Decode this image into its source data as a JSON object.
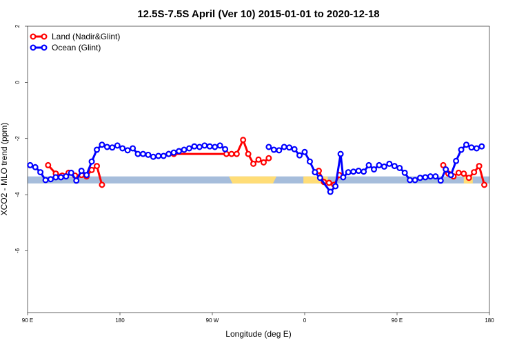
{
  "chart_data": {
    "type": "line",
    "title": "12.5S-7.5S April (Ver 10)   2015-01-01 to 2020-12-18",
    "xlabel": "Longitude (deg E)",
    "ylabel": "XCO2 - MLO trend (ppm)",
    "xlim": [
      90,
      450
    ],
    "ylim": [
      -8.2,
      2
    ],
    "grid": false,
    "legend_position": "top-left",
    "x_ticks": [
      {
        "value": 90,
        "label": "90 E"
      },
      {
        "value": 162,
        "label": "180"
      },
      {
        "value": 234,
        "label": "90 W"
      },
      {
        "value": 306,
        "label": "0"
      },
      {
        "value": 378,
        "label": "90 E"
      },
      {
        "value": 450,
        "label": "180"
      }
    ],
    "y_ticks": [
      {
        "value": 2,
        "label": "2"
      },
      {
        "value": 0,
        "label": "0"
      },
      {
        "value": -2,
        "label": "-2"
      },
      {
        "value": -4,
        "label": "-4"
      },
      {
        "value": -6,
        "label": "-6"
      }
    ],
    "surface_band": {
      "y_range": [
        -3.6,
        -3.35
      ],
      "ocean_color": "#a6bddb",
      "land_color": "#ffdd77",
      "land_spans": [
        [
          247,
          284
        ],
        [
          305,
          324
        ],
        [
          430,
          437
        ]
      ]
    },
    "series": [
      {
        "name": "Land (Nadir&Glint)",
        "color": "#ff0000",
        "segments": [
          [
            [
              106,
              -2.95
            ],
            [
              112,
              -3.25
            ],
            [
              117,
              -3.32
            ],
            [
              122,
              -3.22
            ],
            [
              127,
              -3.32
            ],
            [
              132,
              -3.3
            ],
            [
              136,
              -3.35
            ],
            [
              140,
              -3.12
            ],
            [
              144,
              -2.98
            ],
            [
              148,
              -3.65
            ]
          ],
          [
            [
              200,
              -2.55
            ],
            [
              204,
              -2.55
            ],
            [
              245,
              -2.55
            ],
            [
              249,
              -2.55
            ],
            [
              253,
              -2.55
            ],
            [
              258,
              -2.05
            ],
            [
              262,
              -2.55
            ],
            [
              266,
              -2.9
            ],
            [
              270,
              -2.75
            ],
            [
              274,
              -2.85
            ],
            [
              278,
              -2.7
            ]
          ],
          [
            [
              317,
              -3.15
            ],
            [
              321,
              -3.55
            ],
            [
              325,
              -3.58
            ],
            [
              329,
              -3.65
            ],
            [
              333,
              -3.3
            ]
          ],
          [
            [
              414,
              -2.95
            ],
            [
              418,
              -3.25
            ],
            [
              422,
              -3.35
            ],
            [
              426,
              -3.22
            ],
            [
              430,
              -3.25
            ],
            [
              434,
              -3.4
            ],
            [
              438,
              -3.2
            ],
            [
              442,
              -2.98
            ],
            [
              446,
              -3.65
            ]
          ]
        ]
      },
      {
        "name": "Ocean (Glint)",
        "color": "#0000ff",
        "segments": [
          [
            [
              92,
              -2.95
            ],
            [
              96,
              -3.02
            ],
            [
              100,
              -3.2
            ],
            [
              104,
              -3.48
            ],
            [
              108,
              -3.45
            ],
            [
              112,
              -3.38
            ],
            [
              116,
              -3.38
            ],
            [
              120,
              -3.35
            ],
            [
              124,
              -3.22
            ],
            [
              128,
              -3.5
            ],
            [
              132,
              -3.15
            ],
            [
              136,
              -3.3
            ],
            [
              140,
              -2.82
            ],
            [
              144,
              -2.4
            ],
            [
              148,
              -2.22
            ],
            [
              152,
              -2.3
            ],
            [
              156,
              -2.32
            ],
            [
              160,
              -2.25
            ],
            [
              164,
              -2.35
            ],
            [
              168,
              -2.42
            ],
            [
              172,
              -2.35
            ],
            [
              176,
              -2.55
            ],
            [
              180,
              -2.55
            ],
            [
              184,
              -2.58
            ],
            [
              188,
              -2.65
            ],
            [
              192,
              -2.62
            ],
            [
              196,
              -2.62
            ],
            [
              200,
              -2.55
            ],
            [
              204,
              -2.5
            ],
            [
              208,
              -2.45
            ],
            [
              212,
              -2.4
            ],
            [
              216,
              -2.35
            ],
            [
              220,
              -2.28
            ],
            [
              224,
              -2.3
            ],
            [
              228,
              -2.25
            ],
            [
              232,
              -2.28
            ],
            [
              236,
              -2.3
            ],
            [
              240,
              -2.25
            ],
            [
              244,
              -2.38
            ]
          ],
          [
            [
              278,
              -2.3
            ],
            [
              282,
              -2.4
            ],
            [
              286,
              -2.42
            ],
            [
              290,
              -2.3
            ],
            [
              294,
              -2.32
            ],
            [
              298,
              -2.38
            ],
            [
              302,
              -2.6
            ],
            [
              306,
              -2.48
            ],
            [
              310,
              -2.82
            ],
            [
              314,
              -3.2
            ],
            [
              318,
              -3.4
            ],
            [
              326,
              -3.9
            ],
            [
              330,
              -3.7
            ],
            [
              334,
              -2.55
            ],
            [
              336,
              -3.38
            ],
            [
              340,
              -3.2
            ],
            [
              344,
              -3.18
            ],
            [
              348,
              -3.15
            ],
            [
              352,
              -3.18
            ],
            [
              356,
              -2.95
            ],
            [
              360,
              -3.1
            ],
            [
              364,
              -2.95
            ],
            [
              368,
              -3.0
            ],
            [
              372,
              -2.9
            ],
            [
              376,
              -2.98
            ],
            [
              380,
              -3.05
            ],
            [
              384,
              -3.22
            ],
            [
              388,
              -3.48
            ],
            [
              392,
              -3.48
            ],
            [
              396,
              -3.4
            ],
            [
              400,
              -3.38
            ],
            [
              404,
              -3.35
            ],
            [
              408,
              -3.35
            ],
            [
              412,
              -3.5
            ],
            [
              416,
              -3.1
            ],
            [
              420,
              -3.3
            ],
            [
              424,
              -2.8
            ],
            [
              428,
              -2.4
            ],
            [
              432,
              -2.22
            ],
            [
              436,
              -2.32
            ],
            [
              440,
              -2.35
            ],
            [
              444,
              -2.28
            ]
          ]
        ]
      }
    ]
  }
}
